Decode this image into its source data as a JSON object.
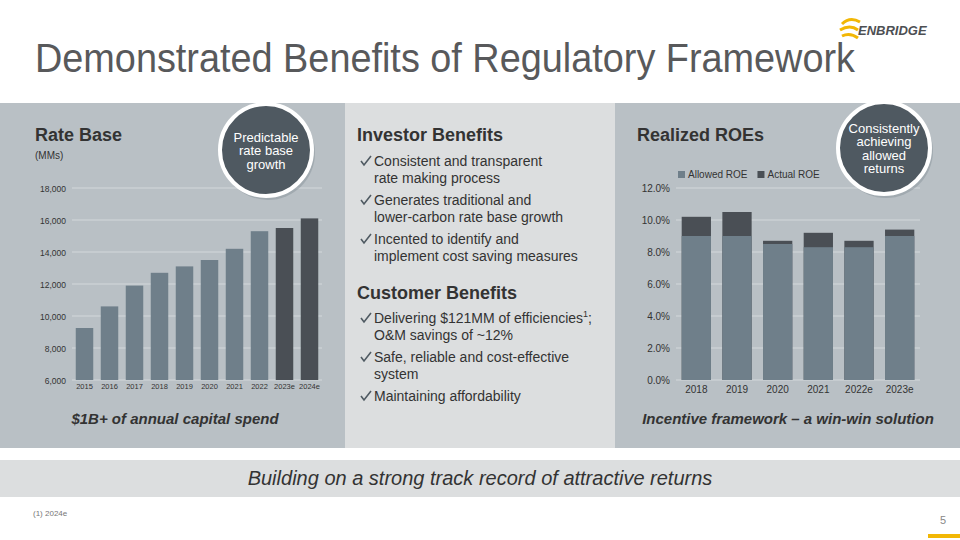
{
  "slide": {
    "title": "Demonstrated Benefits of Regulatory Framework",
    "logo": "ENBRIDGE",
    "left_badge": [
      "Predictable",
      "rate base",
      "growth"
    ],
    "left_caption": "$1B+ of annual capital spend",
    "middle": {
      "investor_heading": "Investor Benefits",
      "investor_items": [
        {
          "lines": [
            "Consistent and transparent",
            "rate making process"
          ]
        },
        {
          "lines": [
            "Generates traditional and",
            "lower-carbon rate base growth"
          ]
        },
        {
          "lines": [
            "Incented to identify and",
            "implement cost saving measures"
          ]
        }
      ],
      "customer_heading": "Customer Benefits",
      "customer_items": [
        {
          "lines": [
            {
              "text": "Delivering $121MM of efficiencies",
              "sup": "1",
              "after": ";"
            },
            "O&M savings of ~12%"
          ]
        },
        {
          "lines": [
            "Safe, reliable and cost-effective",
            "system"
          ]
        },
        {
          "lines": [
            "Maintaining affordability"
          ]
        }
      ]
    },
    "right_badge": [
      "Consistently",
      "achieving",
      "allowed",
      "returns"
    ],
    "right_caption": "Incentive framework – a win-win solution",
    "banner": "Building on a strong track record of attractive returns",
    "footnote": "(1) 2024e",
    "page_number": "5"
  },
  "chart_data": [
    {
      "type": "bar",
      "title": "Rate Base",
      "subtitle": "(MMs)",
      "categories": [
        "2015",
        "2016",
        "2017",
        "2018",
        "2019",
        "2020",
        "2021",
        "2022",
        "2023e",
        "2024e"
      ],
      "values": [
        9250,
        10600,
        11900,
        12700,
        13100,
        13500,
        14200,
        15300,
        15500,
        16100
      ],
      "colors": [
        "#6f7f8a",
        "#6f7f8a",
        "#6f7f8a",
        "#6f7f8a",
        "#6f7f8a",
        "#6f7f8a",
        "#6f7f8a",
        "#6f7f8a",
        "#4a4f55",
        "#4a4f55"
      ],
      "ylim": [
        6000,
        18000
      ],
      "yticks": [
        {
          "value": 6000,
          "label": "6,000"
        },
        {
          "value": 8000,
          "label": "8,000"
        },
        {
          "value": 10000,
          "label": "10,000"
        },
        {
          "value": 12000,
          "label": "12,000"
        },
        {
          "value": 14000,
          "label": "14,000"
        },
        {
          "value": 16000,
          "label": "16,000"
        },
        {
          "value": 18000,
          "label": "18,000"
        }
      ],
      "grid": true
    },
    {
      "type": "bar",
      "title": "Realized ROEs",
      "categories": [
        "2018",
        "2019",
        "2020",
        "2021",
        "2022e",
        "2023e"
      ],
      "series": [
        {
          "name": "Allowed ROE",
          "color": "#6f7f8a",
          "values": [
            9.0,
            9.0,
            8.5,
            8.3,
            8.3,
            9.0
          ]
        },
        {
          "name": "Actual ROE",
          "color": "#4a4f55",
          "values": [
            10.2,
            10.5,
            8.7,
            9.2,
            8.7,
            9.4
          ]
        }
      ],
      "ylim": [
        0,
        12
      ],
      "yticks": [
        {
          "value": 0,
          "label": "0.0%"
        },
        {
          "value": 2,
          "label": "2.0%"
        },
        {
          "value": 4,
          "label": "4.0%"
        },
        {
          "value": 6,
          "label": "6.0%"
        },
        {
          "value": 8,
          "label": "8.0%"
        },
        {
          "value": 10,
          "label": "10.0%"
        },
        {
          "value": 12,
          "label": "12.0%"
        }
      ],
      "grid": true,
      "legend": "top"
    }
  ]
}
